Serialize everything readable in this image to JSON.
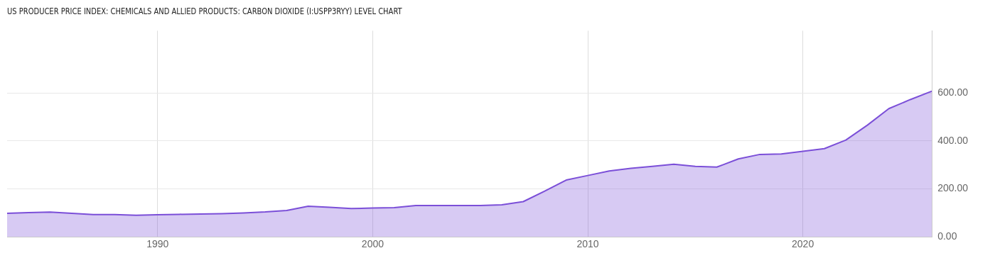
{
  "chart_data": {
    "type": "area",
    "title": "US PRODUCER PRICE INDEX: CHEMICALS AND ALLIED PRODUCTS: CARBON DIOXIDE (I:USPP3RYY) LEVEL CHART",
    "x": [
      1983,
      1984,
      1985,
      1986,
      1987,
      1988,
      1989,
      1990,
      1991,
      1992,
      1993,
      1994,
      1995,
      1996,
      1997,
      1998,
      1999,
      2000,
      2001,
      2002,
      2003,
      2004,
      2005,
      2006,
      2007,
      2008,
      2009,
      2010,
      2011,
      2012,
      2013,
      2014,
      2015,
      2016,
      2017,
      2018,
      2019,
      2020,
      2021,
      2022,
      2023,
      2024,
      2025,
      2026
    ],
    "series": [
      {
        "color": "#7b4fd8",
        "values": [
          98,
          101,
          103,
          98,
          93,
          93,
          90,
          92,
          94,
          95,
          97,
          100,
          104,
          110,
          128,
          123,
          118,
          120,
          122,
          131,
          131,
          131,
          131,
          134,
          147,
          191,
          237,
          256,
          275,
          286,
          294,
          303,
          294,
          291,
          325,
          344,
          346,
          357,
          368,
          404,
          466,
          535,
          573,
          608
        ]
      }
    ],
    "xlim": [
      1983,
      2026
    ],
    "xticks": [
      1990,
      2000,
      2010,
      2020
    ],
    "ylim": [
      0,
      860
    ],
    "yticks": [
      {
        "value": 0,
        "label": "0.00"
      },
      {
        "value": 200,
        "label": "200.00"
      },
      {
        "value": 400,
        "label": "400.00"
      },
      {
        "value": 600,
        "label": "600.00"
      }
    ],
    "grid": true
  }
}
